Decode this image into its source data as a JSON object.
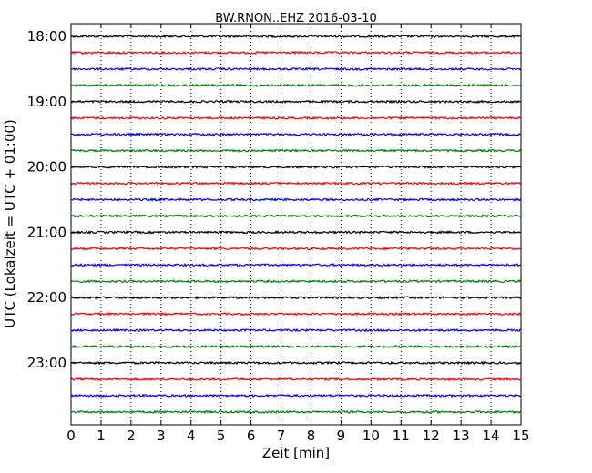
{
  "chart_data": {
    "type": "line",
    "title": "BW.RNON..EHZ 2016-03-10",
    "xlabel": "Zeit  [min]",
    "ylabel": "UTC (Lokalzeit = UTC + 01:00)",
    "xlim": [
      0,
      15
    ],
    "x_ticks": [
      "0",
      "1",
      "2",
      "3",
      "4",
      "5",
      "6",
      "7",
      "8",
      "9",
      "10",
      "11",
      "12",
      "13",
      "14",
      "15"
    ],
    "y_ticks": [
      "18:00",
      "19:00",
      "20:00",
      "21:00",
      "22:00",
      "23:00"
    ],
    "grid": "vertical dotted",
    "trace_colors": [
      "#000000",
      "#ff0000",
      "#0000ff",
      "#008000"
    ],
    "traces": [
      {
        "start": "18:00"
      },
      {
        "start": "18:15"
      },
      {
        "start": "18:30"
      },
      {
        "start": "18:45"
      },
      {
        "start": "19:00"
      },
      {
        "start": "19:15"
      },
      {
        "start": "19:30"
      },
      {
        "start": "19:45"
      },
      {
        "start": "20:00"
      },
      {
        "start": "20:15"
      },
      {
        "start": "20:30"
      },
      {
        "start": "20:45"
      },
      {
        "start": "21:00"
      },
      {
        "start": "21:15"
      },
      {
        "start": "21:30"
      },
      {
        "start": "21:45"
      },
      {
        "start": "22:00"
      },
      {
        "start": "22:15"
      },
      {
        "start": "22:30"
      },
      {
        "start": "22:45"
      },
      {
        "start": "23:00"
      },
      {
        "start": "23:15"
      },
      {
        "start": "23:30"
      },
      {
        "start": "23:45"
      }
    ]
  }
}
